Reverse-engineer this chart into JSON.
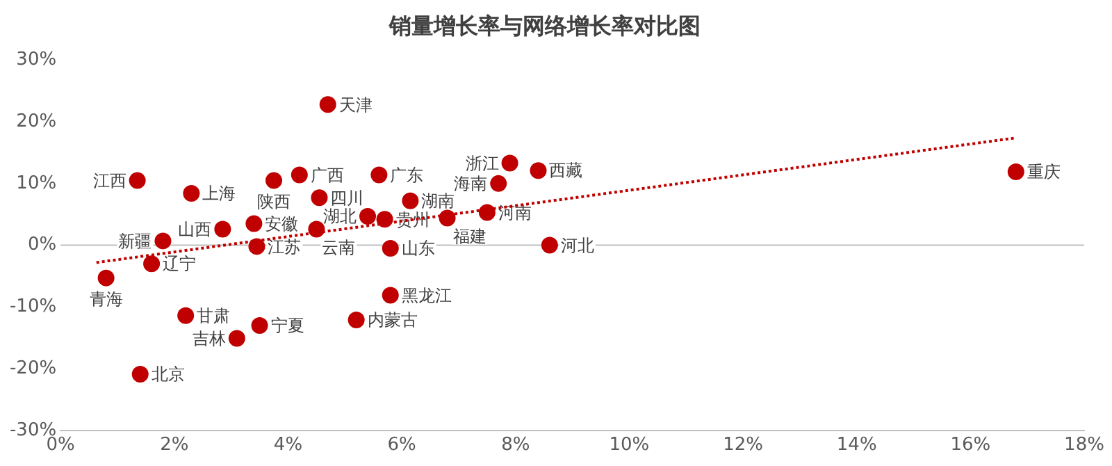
{
  "chart_data": {
    "type": "scatter",
    "title": "销量增长率与网络增长率对比图",
    "legend": false,
    "grid": false,
    "marker": "circle",
    "xlim": [
      0,
      18
    ],
    "xticks": [
      {
        "value": 0,
        "label": "0%"
      },
      {
        "value": 2,
        "label": "2%"
      },
      {
        "value": 4,
        "label": "4%"
      },
      {
        "value": 6,
        "label": "6%"
      },
      {
        "value": 8,
        "label": "8%"
      },
      {
        "value": 10,
        "label": "10%"
      },
      {
        "value": 12,
        "label": "12%"
      },
      {
        "value": 14,
        "label": "14%"
      },
      {
        "value": 16,
        "label": "16%"
      },
      {
        "value": 18,
        "label": "18%"
      }
    ],
    "ylim": [
      -30,
      30
    ],
    "yticks": [
      {
        "value": -30,
        "label": "-30%"
      },
      {
        "value": -20,
        "label": "-20%"
      },
      {
        "value": -10,
        "label": "-10%"
      },
      {
        "value": 0,
        "label": "0%"
      },
      {
        "value": 10,
        "label": "10%"
      },
      {
        "value": 20,
        "label": "20%"
      },
      {
        "value": 30,
        "label": "30%"
      }
    ],
    "ref_lines": [
      {
        "axis": "y",
        "value": 0,
        "color": "#bfbfbf"
      }
    ],
    "series": [
      {
        "name": "天津",
        "color": "#c00000",
        "x": [
          4.7
        ],
        "values": [
          22.8
        ]
      },
      {
        "name": "江西",
        "color": "#c00000",
        "x": [
          1.35
        ],
        "values": [
          10.5
        ]
      },
      {
        "name": "上海",
        "color": "#c00000",
        "x": [
          2.3
        ],
        "values": [
          8.4
        ]
      },
      {
        "name": "陕西",
        "color": "#c00000",
        "x": [
          3.75
        ],
        "values": [
          10.5
        ]
      },
      {
        "name": "广西",
        "color": "#c00000",
        "x": [
          4.2
        ],
        "values": [
          11.4
        ]
      },
      {
        "name": "广东",
        "color": "#c00000",
        "x": [
          5.6
        ],
        "values": [
          11.4
        ]
      },
      {
        "name": "四川",
        "color": "#c00000",
        "x": [
          4.55
        ],
        "values": [
          7.7
        ]
      },
      {
        "name": "湖南",
        "color": "#c00000",
        "x": [
          6.15
        ],
        "values": [
          7.2
        ]
      },
      {
        "name": "浙江",
        "color": "#c00000",
        "x": [
          7.9
        ],
        "values": [
          13.3
        ]
      },
      {
        "name": "西藏",
        "color": "#c00000",
        "x": [
          8.4
        ],
        "values": [
          12.1
        ]
      },
      {
        "name": "海南",
        "color": "#c00000",
        "x": [
          7.7
        ],
        "values": [
          10.0
        ]
      },
      {
        "name": "河南",
        "color": "#c00000",
        "x": [
          7.5
        ],
        "values": [
          5.3
        ]
      },
      {
        "name": "福建",
        "color": "#c00000",
        "x": [
          6.8
        ],
        "values": [
          4.4
        ]
      },
      {
        "name": "湖北",
        "color": "#c00000",
        "x": [
          5.4
        ],
        "values": [
          4.7
        ]
      },
      {
        "name": "贵州",
        "color": "#c00000",
        "x": [
          5.7
        ],
        "values": [
          4.2
        ]
      },
      {
        "name": "云南",
        "color": "#c00000",
        "x": [
          4.5
        ],
        "values": [
          2.6
        ]
      },
      {
        "name": "安徽",
        "color": "#c00000",
        "x": [
          3.4
        ],
        "values": [
          3.5
        ]
      },
      {
        "name": "山西",
        "color": "#c00000",
        "x": [
          2.85
        ],
        "values": [
          2.6
        ]
      },
      {
        "name": "新疆",
        "color": "#c00000",
        "x": [
          1.8
        ],
        "values": [
          0.7
        ]
      },
      {
        "name": "江苏",
        "color": "#c00000",
        "x": [
          3.45
        ],
        "values": [
          -0.2
        ]
      },
      {
        "name": "山东",
        "color": "#c00000",
        "x": [
          5.8
        ],
        "values": [
          -0.5
        ]
      },
      {
        "name": "河北",
        "color": "#c00000",
        "x": [
          8.6
        ],
        "values": [
          0
        ]
      },
      {
        "name": "辽宁",
        "color": "#c00000",
        "x": [
          1.6
        ],
        "values": [
          -3.0
        ]
      },
      {
        "name": "青海",
        "color": "#c00000",
        "x": [
          0.8
        ],
        "values": [
          -5.3
        ]
      },
      {
        "name": "黑龙江",
        "color": "#c00000",
        "x": [
          5.8
        ],
        "values": [
          -8.1
        ]
      },
      {
        "name": "内蒙古",
        "color": "#c00000",
        "x": [
          5.2
        ],
        "values": [
          -12.1
        ]
      },
      {
        "name": "甘肃",
        "color": "#c00000",
        "x": [
          2.2
        ],
        "values": [
          -11.4
        ]
      },
      {
        "name": "宁夏",
        "color": "#c00000",
        "x": [
          3.5
        ],
        "values": [
          -13.0
        ]
      },
      {
        "name": "吉林",
        "color": "#c00000",
        "x": [
          3.1
        ],
        "values": [
          -15.1
        ]
      },
      {
        "name": "北京",
        "color": "#c00000",
        "x": [
          1.4
        ],
        "values": [
          -20.9
        ]
      },
      {
        "name": "重庆",
        "color": "#c00000",
        "x": [
          16.8
        ],
        "values": [
          11.9
        ]
      },
      {
        "type": "line",
        "color": "#c00000",
        "line_style": "dotted",
        "marker": "none",
        "x": [
          0.63,
          16.8
        ],
        "values": [
          -2.8,
          17.4
        ]
      }
    ]
  }
}
